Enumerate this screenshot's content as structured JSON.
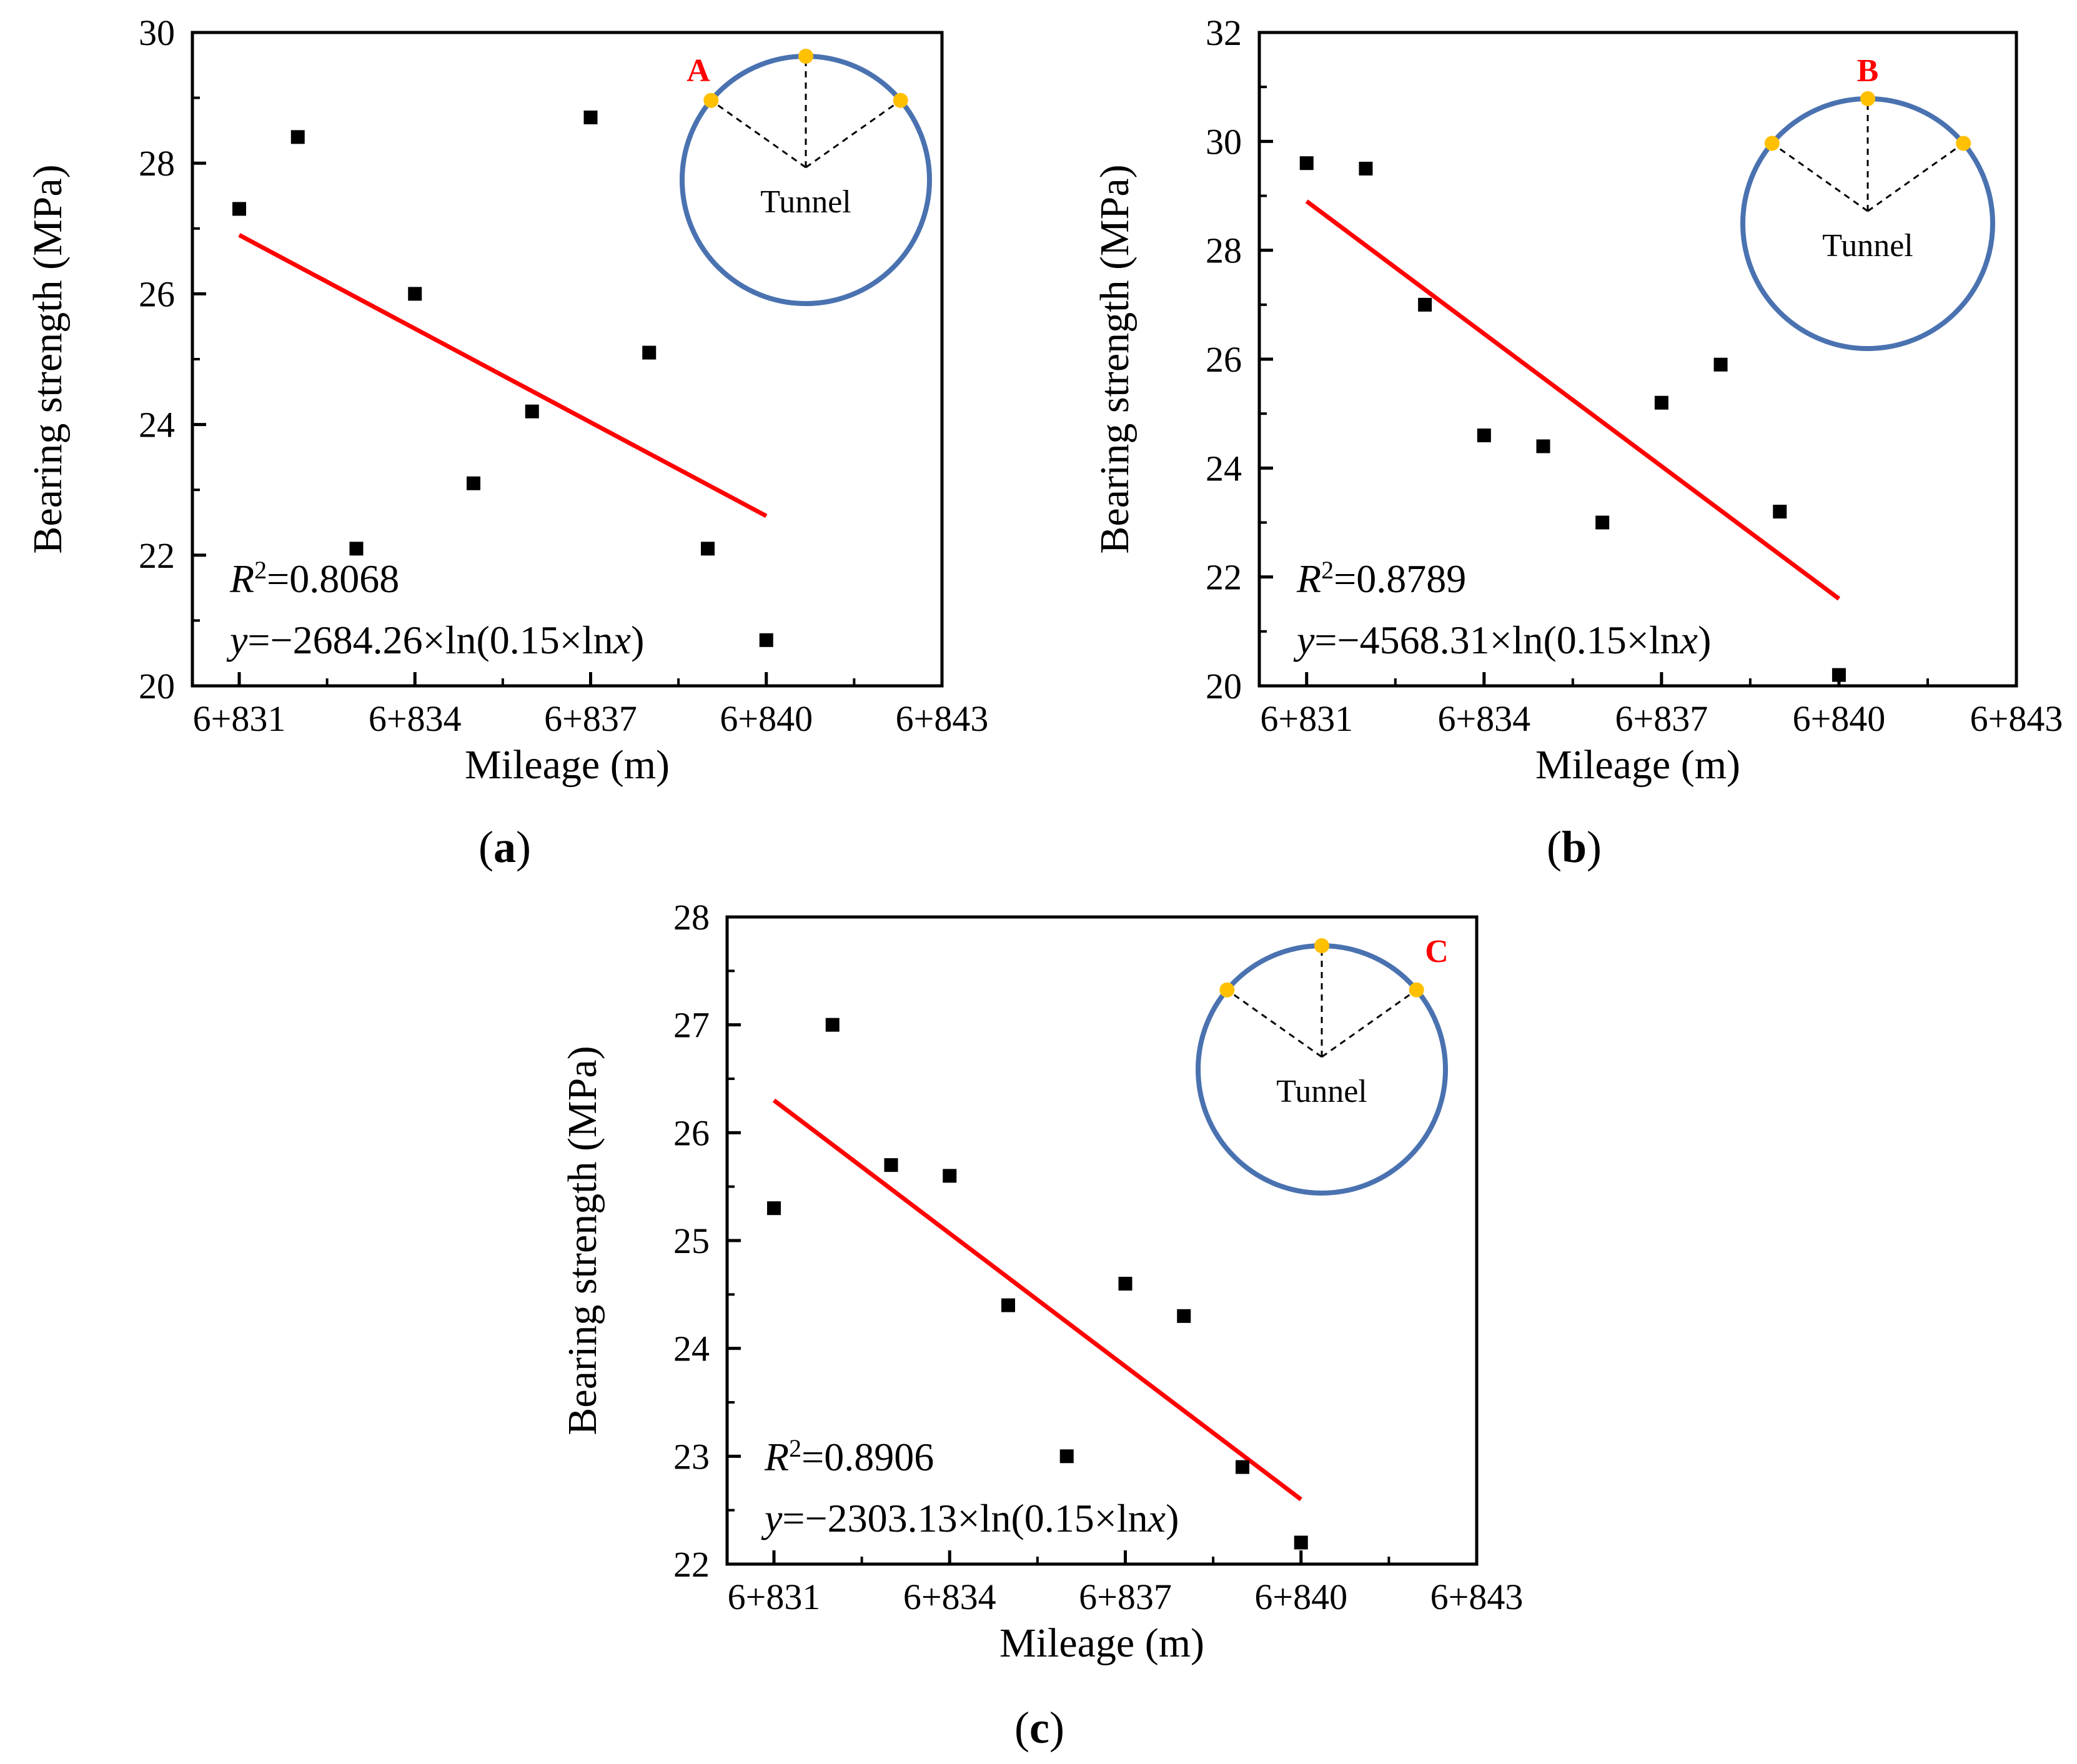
{
  "figure": {
    "x_axis_label": "Mileage (m)",
    "y_axis_label": "Bearing strength (MPa)",
    "tunnel_label": "Tunnel"
  },
  "chart_data": [
    {
      "type": "scatter",
      "panel_label": "(a)",
      "panel_letter": "a",
      "point_marker": "A",
      "xlabel": "Mileage (m)",
      "ylabel": "Bearing strength (MPa)",
      "xlim": [
        6830.2,
        6843
      ],
      "ylim": [
        20,
        30
      ],
      "x_ticks": [
        6831,
        6834,
        6837,
        6840,
        6843
      ],
      "x_tick_labels": [
        "6+831",
        "6+834",
        "6+837",
        "6+840",
        "6+843"
      ],
      "y_ticks": [
        20,
        22,
        24,
        26,
        28,
        30
      ],
      "y_tick_labels": [
        "20",
        "22",
        "24",
        "26",
        "28",
        "30"
      ],
      "points": {
        "x": [
          6831,
          6832,
          6833,
          6834,
          6835,
          6836,
          6837,
          6838,
          6839,
          6840
        ],
        "y": [
          27.3,
          28.4,
          22.1,
          26.0,
          23.1,
          24.2,
          28.7,
          25.1,
          22.1,
          20.7
        ]
      },
      "fit": {
        "x": [
          6831,
          6840
        ],
        "y": [
          26.9,
          22.6
        ],
        "color": "#ff0000"
      },
      "r2_label": "R",
      "r2_superscript": "2",
      "r2_value": "=0.8068",
      "eq_y": "y",
      "eq_body": "=−2684.26×ln(0.15×ln",
      "eq_x": "x",
      "eq_close": ")"
    },
    {
      "type": "scatter",
      "panel_label": "(b)",
      "panel_letter": "b",
      "point_marker": "B",
      "xlabel": "Mileage (m)",
      "ylabel": "Bearing strength (MPa)",
      "xlim": [
        6830.2,
        6843
      ],
      "ylim": [
        20,
        32
      ],
      "x_ticks": [
        6831,
        6834,
        6837,
        6840,
        6843
      ],
      "x_tick_labels": [
        "6+831",
        "6+834",
        "6+837",
        "6+840",
        "6+843"
      ],
      "y_ticks": [
        20,
        22,
        24,
        26,
        28,
        30,
        32
      ],
      "y_tick_labels": [
        "20",
        "22",
        "24",
        "26",
        "28",
        "30",
        "32"
      ],
      "points": {
        "x": [
          6831,
          6832,
          6833,
          6834,
          6835,
          6836,
          6837,
          6838,
          6839,
          6840
        ],
        "y": [
          29.6,
          29.5,
          27.0,
          24.6,
          24.4,
          23.0,
          25.2,
          25.9,
          23.2,
          20.2
        ]
      },
      "fit": {
        "x": [
          6831,
          6840
        ],
        "y": [
          28.9,
          21.6
        ],
        "color": "#ff0000"
      },
      "r2_label": "R",
      "r2_superscript": "2",
      "r2_value": "=0.8789",
      "eq_y": "y",
      "eq_body": "=−4568.31×ln(0.15×ln",
      "eq_x": "x",
      "eq_close": ")"
    },
    {
      "type": "scatter",
      "panel_label": "(c)",
      "panel_letter": "c",
      "point_marker": "C",
      "xlabel": "Mileage (m)",
      "ylabel": "Bearing strength (MPa)",
      "xlim": [
        6830.2,
        6843
      ],
      "ylim": [
        22,
        28
      ],
      "x_ticks": [
        6831,
        6834,
        6837,
        6840,
        6843
      ],
      "x_tick_labels": [
        "6+831",
        "6+834",
        "6+837",
        "6+840",
        "6+843"
      ],
      "y_ticks": [
        22,
        23,
        24,
        25,
        26,
        27,
        28
      ],
      "y_tick_labels": [
        "22",
        "23",
        "24",
        "25",
        "26",
        "27",
        "28"
      ],
      "points": {
        "x": [
          6831,
          6832,
          6833,
          6834,
          6835,
          6836,
          6837,
          6838,
          6839,
          6840
        ],
        "y": [
          25.3,
          27.0,
          25.7,
          25.6,
          24.4,
          23.0,
          24.6,
          24.3,
          22.9,
          22.2
        ]
      },
      "fit": {
        "x": [
          6831,
          6840
        ],
        "y": [
          26.3,
          22.6
        ],
        "color": "#ff0000"
      },
      "r2_label": "R",
      "r2_superscript": "2",
      "r2_value": "=0.8906",
      "eq_y": "y",
      "eq_body": "=−2303.13×ln(0.15×ln",
      "eq_x": "x",
      "eq_close": ")"
    }
  ],
  "colors": {
    "axis": "#000000",
    "marker": "#000000",
    "fit_line": "#ff0000",
    "tunnel_ring": "#4a72b0",
    "measure_point": "#ffc000",
    "point_label": "#ff0000"
  }
}
